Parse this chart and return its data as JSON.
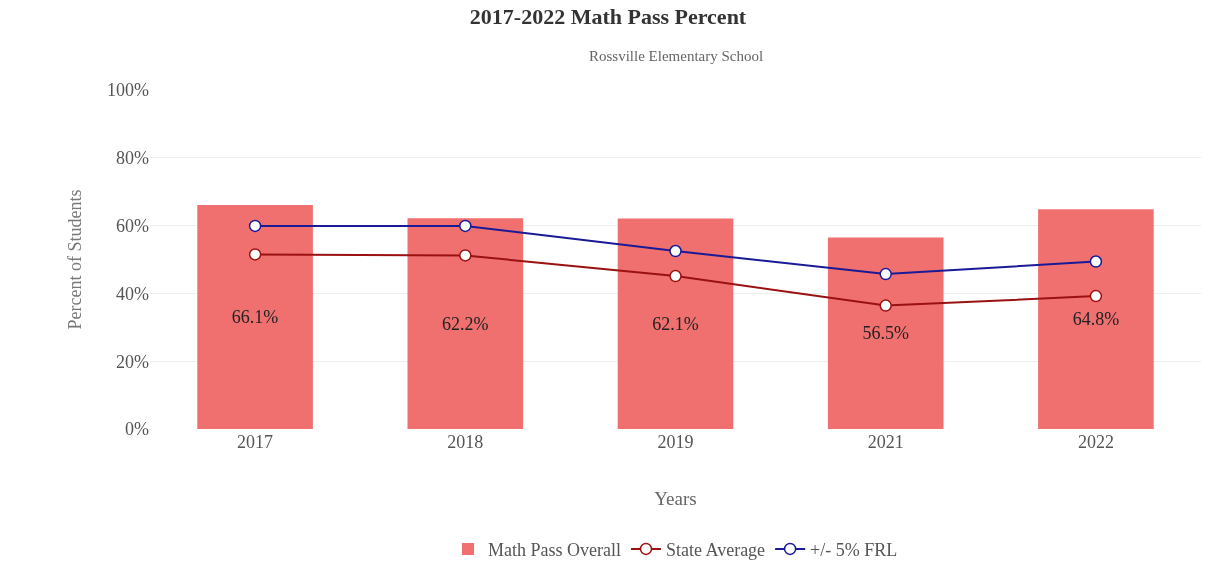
{
  "chart_data": {
    "type": "bar",
    "title": "2017-2022 Math Pass Percent",
    "subtitle": "Rossville Elementary School",
    "xlabel": "Years",
    "ylabel": "Percent of Students",
    "categories": [
      "2017",
      "2018",
      "2019",
      "2021",
      "2022"
    ],
    "series": [
      {
        "name": "Math Pass Overall",
        "color": "#f07070",
        "values": [
          66.1,
          62.2,
          62.1,
          56.5,
          64.8
        ],
        "value_labels": [
          "66.1%",
          "62.2%",
          "62.1%",
          "56.5%",
          "64.8%"
        ]
      },
      {
        "name": "State Average",
        "type": "line",
        "color": "#9b1010",
        "values": [
          51.5,
          51.2,
          45.1,
          36.4,
          39.2
        ]
      },
      {
        "name": "+/- 5% FRL",
        "type": "line",
        "color": "#1a1a96",
        "values": [
          59.9,
          59.9,
          52.5,
          45.7,
          49.4
        ]
      }
    ],
    "ylim": [
      0,
      100
    ],
    "yticks": [
      {
        "value": 0,
        "label": "0%"
      },
      {
        "value": 20,
        "label": "20%"
      },
      {
        "value": 40,
        "label": "40%"
      },
      {
        "value": 60,
        "label": "60%"
      },
      {
        "value": 80,
        "label": "80%"
      },
      {
        "value": 100,
        "label": "100%"
      }
    ],
    "grid": "y",
    "legend": "bottom",
    "marker": "circle",
    "line_style": "solid"
  }
}
